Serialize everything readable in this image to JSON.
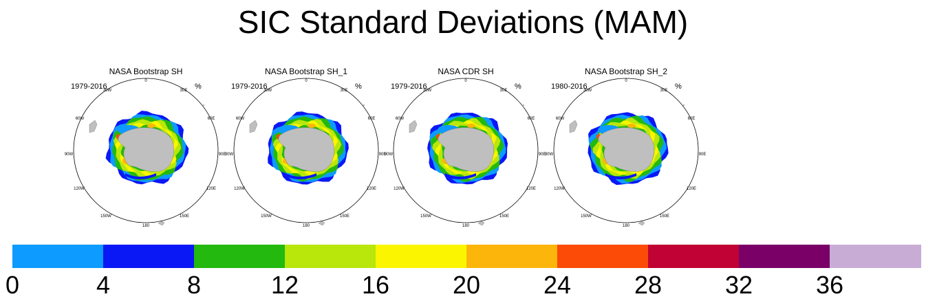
{
  "title": "SIC Standard Deviations (MAM)",
  "chart_data": {
    "type": "heatmap",
    "projection": "south-polar-stereographic",
    "title": "SIC Standard Deviations (MAM)",
    "units": "%",
    "panels": [
      {
        "name": "NASA Bootstrap SH",
        "years": "1979-2016",
        "units": "%"
      },
      {
        "name": "NASA Bootstrap SH_1",
        "years": "1979-2016",
        "units": "%"
      },
      {
        "name": "NASA CDR SH",
        "years": "1979-2016",
        "units": "%"
      },
      {
        "name": "NASA Bootstrap SH_2",
        "years": "1980-2016",
        "units": "%"
      }
    ],
    "longitude_labels": [
      "0",
      "30E",
      "60E",
      "90E",
      "120E",
      "150E",
      "180",
      "150W",
      "120W",
      "90W",
      "60W",
      "30W"
    ],
    "colorbar": {
      "ticks": [
        "0",
        "4",
        "8",
        "12",
        "16",
        "20",
        "24",
        "28",
        "32",
        "36"
      ],
      "bins": [
        {
          "from": 0,
          "to": 4,
          "color": "#0d9bff"
        },
        {
          "from": 4,
          "to": 8,
          "color": "#0a18f5"
        },
        {
          "from": 8,
          "to": 12,
          "color": "#23b90f"
        },
        {
          "from": 12,
          "to": 16,
          "color": "#b9e60b"
        },
        {
          "from": 16,
          "to": 20,
          "color": "#fbf500"
        },
        {
          "from": 20,
          "to": 24,
          "color": "#fcb50b"
        },
        {
          "from": 24,
          "to": 28,
          "color": "#fb4b06"
        },
        {
          "from": 28,
          "to": 32,
          "color": "#c00234"
        },
        {
          "from": 32,
          "to": 36,
          "color": "#7a0068"
        },
        {
          "from": 36,
          "to": 40,
          "color": "#c8acd6"
        }
      ]
    }
  }
}
